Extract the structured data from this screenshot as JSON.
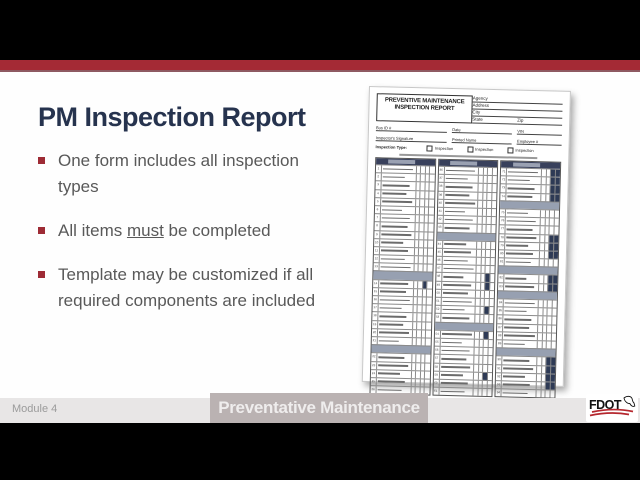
{
  "slide": {
    "title": "PM Inspection Report",
    "bullets": [
      {
        "text": "One form includes all inspection types"
      },
      {
        "pre": "All items ",
        "underlined": "must",
        "post": " be completed"
      },
      {
        "text": "Template may be customized if all required components are included"
      }
    ]
  },
  "footer": {
    "module": "Module 4",
    "banner": "Preventative Maintenance",
    "logo": "FDOT"
  },
  "colors": {
    "accent_red": "#A42A35",
    "title_navy": "#26334E",
    "body_gray": "#595959",
    "banner_taupe": "#BAB2B2",
    "table_header_navy": "#39415C",
    "section_bar_gray": "#97A0B1"
  },
  "form": {
    "title_line1": "PREVENTIVE MAINTENANCE",
    "title_line2": "INSPECTION REPORT",
    "fields": {
      "agency": "Agency",
      "address": "Address",
      "city": "City",
      "state": "State",
      "zip": "Zip",
      "bus_id": "Bus ID #",
      "date": "Date",
      "vin": "VIN",
      "signature": "Inspector's Signature",
      "printed_name": "Printed Name",
      "employee": "Employee #",
      "inspection_type": "Inspection Type:",
      "checkbox_labels": [
        "Inspection",
        "Inspection",
        "Inspection"
      ]
    },
    "columns": [
      {
        "start": 1,
        "rows": 28,
        "sections": [
          13,
          22
        ],
        "dark_rows": [
          14
        ],
        "dark_from": 2,
        "dark_span": 1
      },
      {
        "start": 36,
        "rows": 28,
        "sections": [
          8,
          19
        ],
        "dark_rows": [
          13,
          14,
          17,
          20,
          25
        ],
        "dark_from": 2,
        "dark_span": 1
      },
      {
        "start": 71,
        "rows": 28,
        "sections": [
          4,
          12,
          15,
          22
        ],
        "dark_rows": [
          0,
          1,
          2,
          3,
          8,
          9,
          10,
          13,
          14,
          23,
          24,
          25,
          26
        ],
        "dark_from": 2,
        "dark_span": 2
      }
    ],
    "smudge_widths": [
      88,
      65,
      80,
      72,
      90,
      60,
      84,
      76
    ]
  }
}
